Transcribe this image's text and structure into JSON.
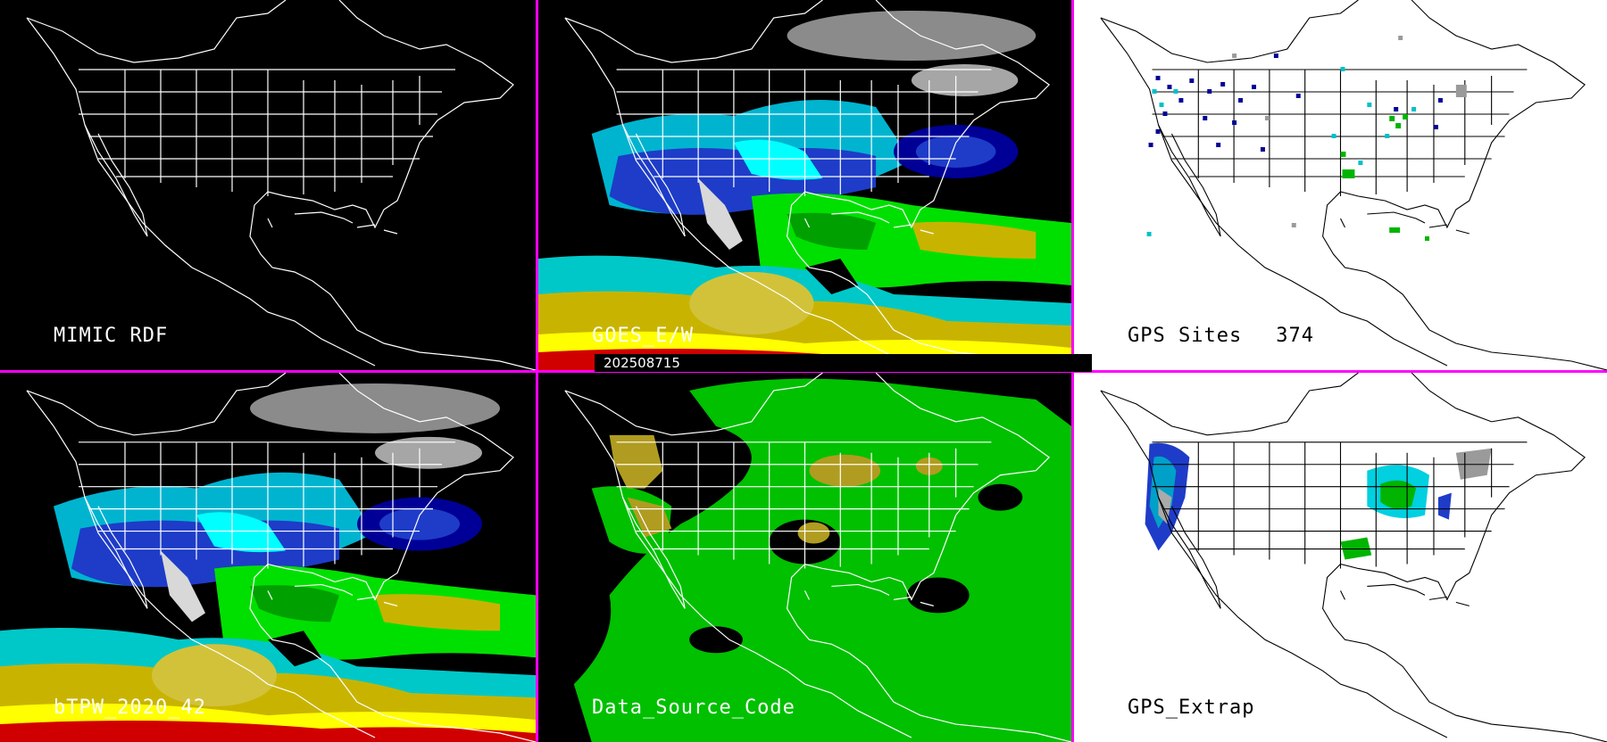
{
  "colors": {
    "divider": "#ff00ff",
    "dark_background": "#000000",
    "light_background": "#ffffff",
    "map_lines_dark": "#ffffff",
    "map_lines_light": "#000000",
    "tpw_scale": [
      "#ff0000",
      "#ffff00",
      "#c8b400",
      "#00ff00",
      "#00c800",
      "#00ffff",
      "#00a0c8",
      "#1e3cc8",
      "#000096",
      "#aaaaaa",
      "#e6e6e6"
    ]
  },
  "timestamp": "202508715",
  "panels": [
    {
      "id": "mimic-rdf",
      "label": "MIMIC RDF",
      "theme": "dark",
      "content": "map-outline"
    },
    {
      "id": "goes-ew",
      "label": "GOES_E/W",
      "theme": "dark",
      "content": "tpw-field"
    },
    {
      "id": "gps-sites",
      "label": "GPS Sites",
      "count": "374",
      "theme": "light",
      "content": "gps-station-markers"
    },
    {
      "id": "btpw",
      "label": "bTPW_2020_42",
      "theme": "dark",
      "content": "tpw-field"
    },
    {
      "id": "data-source-code",
      "label": "Data_Source_Code",
      "theme": "dark",
      "content": "source-code-field"
    },
    {
      "id": "gps-extrap",
      "label": "GPS_Extrap",
      "theme": "light",
      "content": "gps-extrapolated-field"
    }
  ]
}
